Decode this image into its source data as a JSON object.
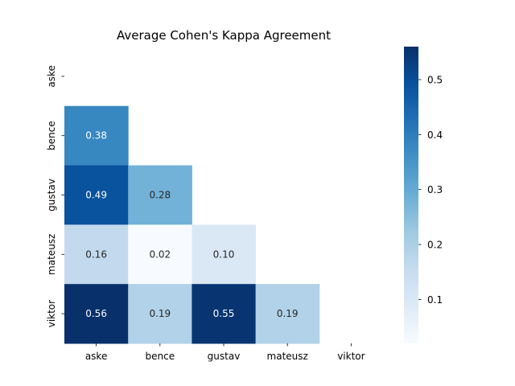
{
  "chart_data": {
    "type": "heatmap",
    "title": "Average Cohen's Kappa Agreement",
    "xlabel": "",
    "ylabel": "",
    "rows": [
      "aske",
      "bence",
      "gustav",
      "mateusz",
      "viktor"
    ],
    "cols": [
      "aske",
      "bence",
      "gustav",
      "mateusz",
      "viktor"
    ],
    "mask": "upper-triangle-including-diagonal",
    "values": [
      [
        null,
        null,
        null,
        null,
        null
      ],
      [
        0.38,
        null,
        null,
        null,
        null
      ],
      [
        0.49,
        0.28,
        null,
        null,
        null
      ],
      [
        0.16,
        0.02,
        0.1,
        null,
        null
      ],
      [
        0.56,
        0.19,
        0.55,
        0.19,
        null
      ]
    ],
    "value_format": "0.00",
    "colormap": "Blues",
    "vmin": 0.02,
    "vmax": 0.56,
    "colorbar": {
      "ticks": [
        0.1,
        0.2,
        0.3,
        0.4,
        0.5
      ],
      "tick_labels": [
        "0.1",
        "0.2",
        "0.3",
        "0.4",
        "0.5"
      ]
    }
  }
}
